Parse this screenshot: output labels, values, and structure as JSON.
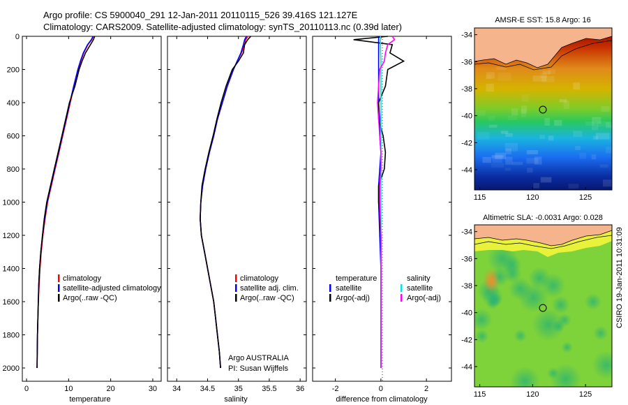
{
  "titles": {
    "line1": "Argo profile: CS 5900040_291 12-Jan-2011 20110115_526 39.416S 121.127E",
    "line2": "Climatology: CARS2009. Satellite-adjusted climatology: synTS_20110113.nc (0.39d later)"
  },
  "map_top_title": "AMSR-E SST: 15.8 Argo: 16",
  "map_bottom_title": "Altimetric SLA: -0.0031  Argo: 0.028",
  "credit": "CSIRO 19-Jan-2011 10:31:09",
  "argo_info": {
    "line1": "Argo AUSTRALIA",
    "line2": "PI: Susan Wijffels"
  },
  "colors": {
    "climatology": "#ff0000",
    "satellite": "#0000ff",
    "argo": "#000000",
    "sat_sal": "#00e5e5",
    "argo_sal": "#ff00ff"
  },
  "chart_data": [
    {
      "type": "line",
      "xlabel": "temperature",
      "ylabel": "",
      "xlim": [
        -1,
        32
      ],
      "ylim": [
        2080,
        0
      ],
      "xticks": [
        "0",
        "10",
        "20",
        "30"
      ],
      "yticks": [
        "0",
        "200",
        "400",
        "600",
        "800",
        "1000",
        "1200",
        "1400",
        "1600",
        "1800",
        "2000"
      ],
      "legend": [
        "climatology",
        "satellite-adjusted climatology",
        "Argo(..raw -QC)"
      ],
      "depth": [
        0,
        20,
        50,
        100,
        150,
        200,
        300,
        400,
        500,
        600,
        700,
        800,
        900,
        1000,
        1100,
        1200,
        1300,
        1400,
        1500,
        1600,
        1700,
        1800,
        1900,
        2000
      ],
      "series": [
        {
          "name": "climatology",
          "values": [
            15.9,
            15.5,
            14.6,
            13.6,
            12.9,
            12.3,
            11.3,
            10.4,
            9.5,
            8.6,
            7.7,
            6.8,
            5.9,
            5.0,
            4.4,
            3.9,
            3.5,
            3.2,
            3.0,
            2.8,
            2.7,
            2.6,
            2.55,
            2.5
          ]
        },
        {
          "name": "satellite",
          "values": [
            15.8,
            15.4,
            14.5,
            13.5,
            12.8,
            12.2,
            11.2,
            10.3,
            9.4,
            8.5,
            7.6,
            6.7,
            5.8,
            4.9,
            4.3,
            3.8,
            3.4,
            3.1,
            2.9,
            2.8,
            2.7,
            2.6,
            2.55,
            2.5
          ]
        },
        {
          "name": "argo",
          "values": [
            16.2,
            15.9,
            15.2,
            14.0,
            13.2,
            12.5,
            11.5,
            10.2,
            9.3,
            8.4,
            7.5,
            6.6,
            5.7,
            4.8,
            4.2,
            3.8,
            3.4,
            3.1,
            2.9,
            2.8,
            2.7,
            2.6,
            2.55,
            2.5
          ]
        }
      ]
    },
    {
      "type": "line",
      "xlabel": "salinity",
      "ylabel": "",
      "xlim": [
        33.85,
        36.1
      ],
      "ylim": [
        2080,
        0
      ],
      "xticks": [
        "34",
        "34.5",
        "35",
        "35.5",
        "36"
      ],
      "legend": [
        "climatology",
        "satellite adj. clim.",
        "Argo(..raw -QC)"
      ],
      "depth": [
        0,
        20,
        50,
        100,
        150,
        200,
        300,
        400,
        500,
        600,
        700,
        800,
        900,
        1000,
        1100,
        1200,
        1300,
        1400,
        1500,
        1600,
        1700,
        1800,
        1900,
        2000
      ],
      "series": [
        {
          "name": "climatology",
          "values": [
            35.15,
            35.12,
            35.1,
            35.05,
            34.98,
            34.92,
            34.82,
            34.74,
            34.66,
            34.6,
            34.53,
            34.47,
            34.42,
            34.39,
            34.38,
            34.4,
            34.45,
            34.5,
            34.55,
            34.6,
            34.63,
            34.66,
            34.69,
            34.71
          ]
        },
        {
          "name": "satellite",
          "values": [
            35.13,
            35.1,
            35.08,
            35.04,
            34.98,
            34.92,
            34.82,
            34.74,
            34.66,
            34.6,
            34.53,
            34.47,
            34.42,
            34.39,
            34.38,
            34.4,
            34.45,
            34.5,
            34.55,
            34.6,
            34.63,
            34.66,
            34.69,
            34.71
          ]
        },
        {
          "name": "argo",
          "values": [
            35.2,
            35.15,
            35.1,
            35.08,
            35.0,
            34.9,
            34.8,
            34.72,
            34.65,
            34.59,
            34.52,
            34.46,
            34.41,
            34.39,
            34.38,
            34.4,
            34.45,
            34.5,
            34.55,
            34.6,
            34.63,
            34.66,
            34.69,
            34.71
          ]
        }
      ]
    },
    {
      "type": "line",
      "xlabel": "difference from climatology",
      "ylabel": "",
      "xlim": [
        -3,
        3.1
      ],
      "ylim": [
        2080,
        0
      ],
      "xticks": [
        "-2",
        "0",
        "2"
      ],
      "legend_headers": [
        "temperature",
        "salinity"
      ],
      "legend": [
        "satellite",
        "Argo(-adj)",
        "satellite",
        "Argo(-adj)"
      ],
      "depth": [
        0,
        20,
        50,
        100,
        150,
        200,
        300,
        400,
        500,
        600,
        700,
        800,
        900,
        1000,
        1200,
        1400,
        1600,
        1800,
        2000
      ],
      "series": [
        {
          "name": "temperature satellite",
          "values": [
            -0.1,
            -0.1,
            -0.1,
            -0.1,
            -0.1,
            -0.1,
            -0.1,
            -0.1,
            -0.05,
            -0.05,
            0.0,
            -0.05,
            -0.1,
            -0.1,
            -0.05,
            0.0,
            0.0,
            0.0,
            0.0
          ]
        },
        {
          "name": "temperature Argo(-adj)",
          "values": [
            0.3,
            -1.2,
            0.5,
            0.4,
            1.0,
            0.3,
            0.2,
            -0.1,
            -0.1,
            0.1,
            0.2,
            0.15,
            -0.1,
            -0.1,
            0.0,
            0.0,
            0.0,
            0.0,
            0.0
          ]
        },
        {
          "name": "salinity satellite",
          "values": [
            -0.02,
            -0.02,
            -0.02,
            -0.01,
            0.0,
            0.0,
            0.0,
            0.0,
            0.0,
            0.0,
            0.0,
            0.0,
            0.0,
            0.0,
            0.0,
            0.0,
            0.0,
            0.0,
            0.0
          ]
        },
        {
          "name": "salinity Argo(-adj)",
          "values": [
            0.5,
            0.6,
            0.3,
            0.2,
            0.15,
            -0.05,
            -0.1,
            -0.15,
            -0.1,
            -0.05,
            0.0,
            0.0,
            -0.05,
            -0.05,
            0.0,
            0.0,
            0.0,
            0.0,
            0.0
          ]
        }
      ]
    },
    {
      "type": "heatmap",
      "title": "AMSR-E SST: 15.8 Argo: 16",
      "xticks": [
        "115",
        "120",
        "125"
      ],
      "yticks": [
        "-34",
        "-36",
        "-38",
        "-40",
        "-42",
        "-44"
      ],
      "xlim": [
        114.5,
        127.5
      ],
      "ylim": [
        -45.5,
        -33.5
      ],
      "profile_location": [
        121.127,
        -39.416
      ]
    },
    {
      "type": "heatmap",
      "title": "Altimetric SLA: -0.0031  Argo: 0.028",
      "xticks": [
        "115",
        "120",
        "125"
      ],
      "yticks": [
        "-34",
        "-36",
        "-38",
        "-40",
        "-42",
        "-44"
      ],
      "xlim": [
        114.5,
        127.5
      ],
      "ylim": [
        -45.5,
        -33.5
      ],
      "profile_location": [
        121.127,
        -39.416
      ]
    }
  ]
}
